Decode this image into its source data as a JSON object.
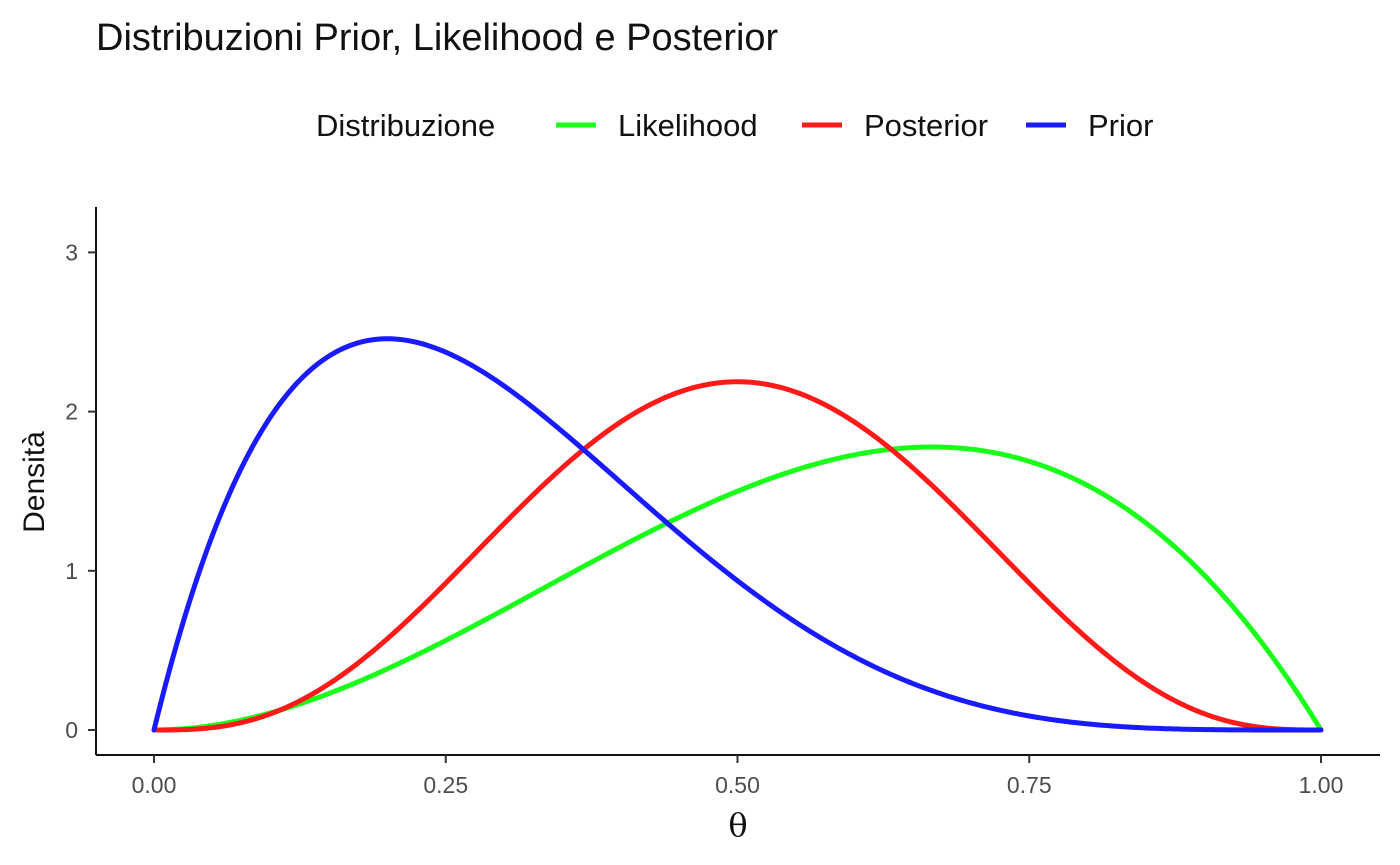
{
  "chart_data": {
    "type": "line",
    "title": "Distribuzioni Prior, Likelihood e Posterior",
    "xlabel": "θ",
    "ylabel": "Densità",
    "xlim": [
      0,
      1
    ],
    "ylim": [
      -0.15,
      3.3
    ],
    "x_ticks": [
      0,
      0.25,
      0.5,
      0.75,
      1.0
    ],
    "x_tick_labels": [
      "0.00",
      "0.25",
      "0.50",
      "0.75",
      "1.00"
    ],
    "y_ticks": [
      0,
      1,
      2,
      3
    ],
    "y_tick_labels": [
      "0",
      "1",
      "2",
      "3"
    ],
    "grid": false,
    "legend": {
      "title": "Distribuzione",
      "position": "top",
      "entries": [
        "Likelihood",
        "Posterior",
        "Prior"
      ]
    },
    "series": [
      {
        "name": "Likelihood",
        "color": "#1aff1a",
        "distribution": "Beta(3, 2)"
      },
      {
        "name": "Posterior",
        "color": "#ff1a1a",
        "distribution": "Beta(4, 4)"
      },
      {
        "name": "Prior",
        "color": "#1a1aff",
        "distribution": "Beta(2, 5)"
      }
    ]
  }
}
